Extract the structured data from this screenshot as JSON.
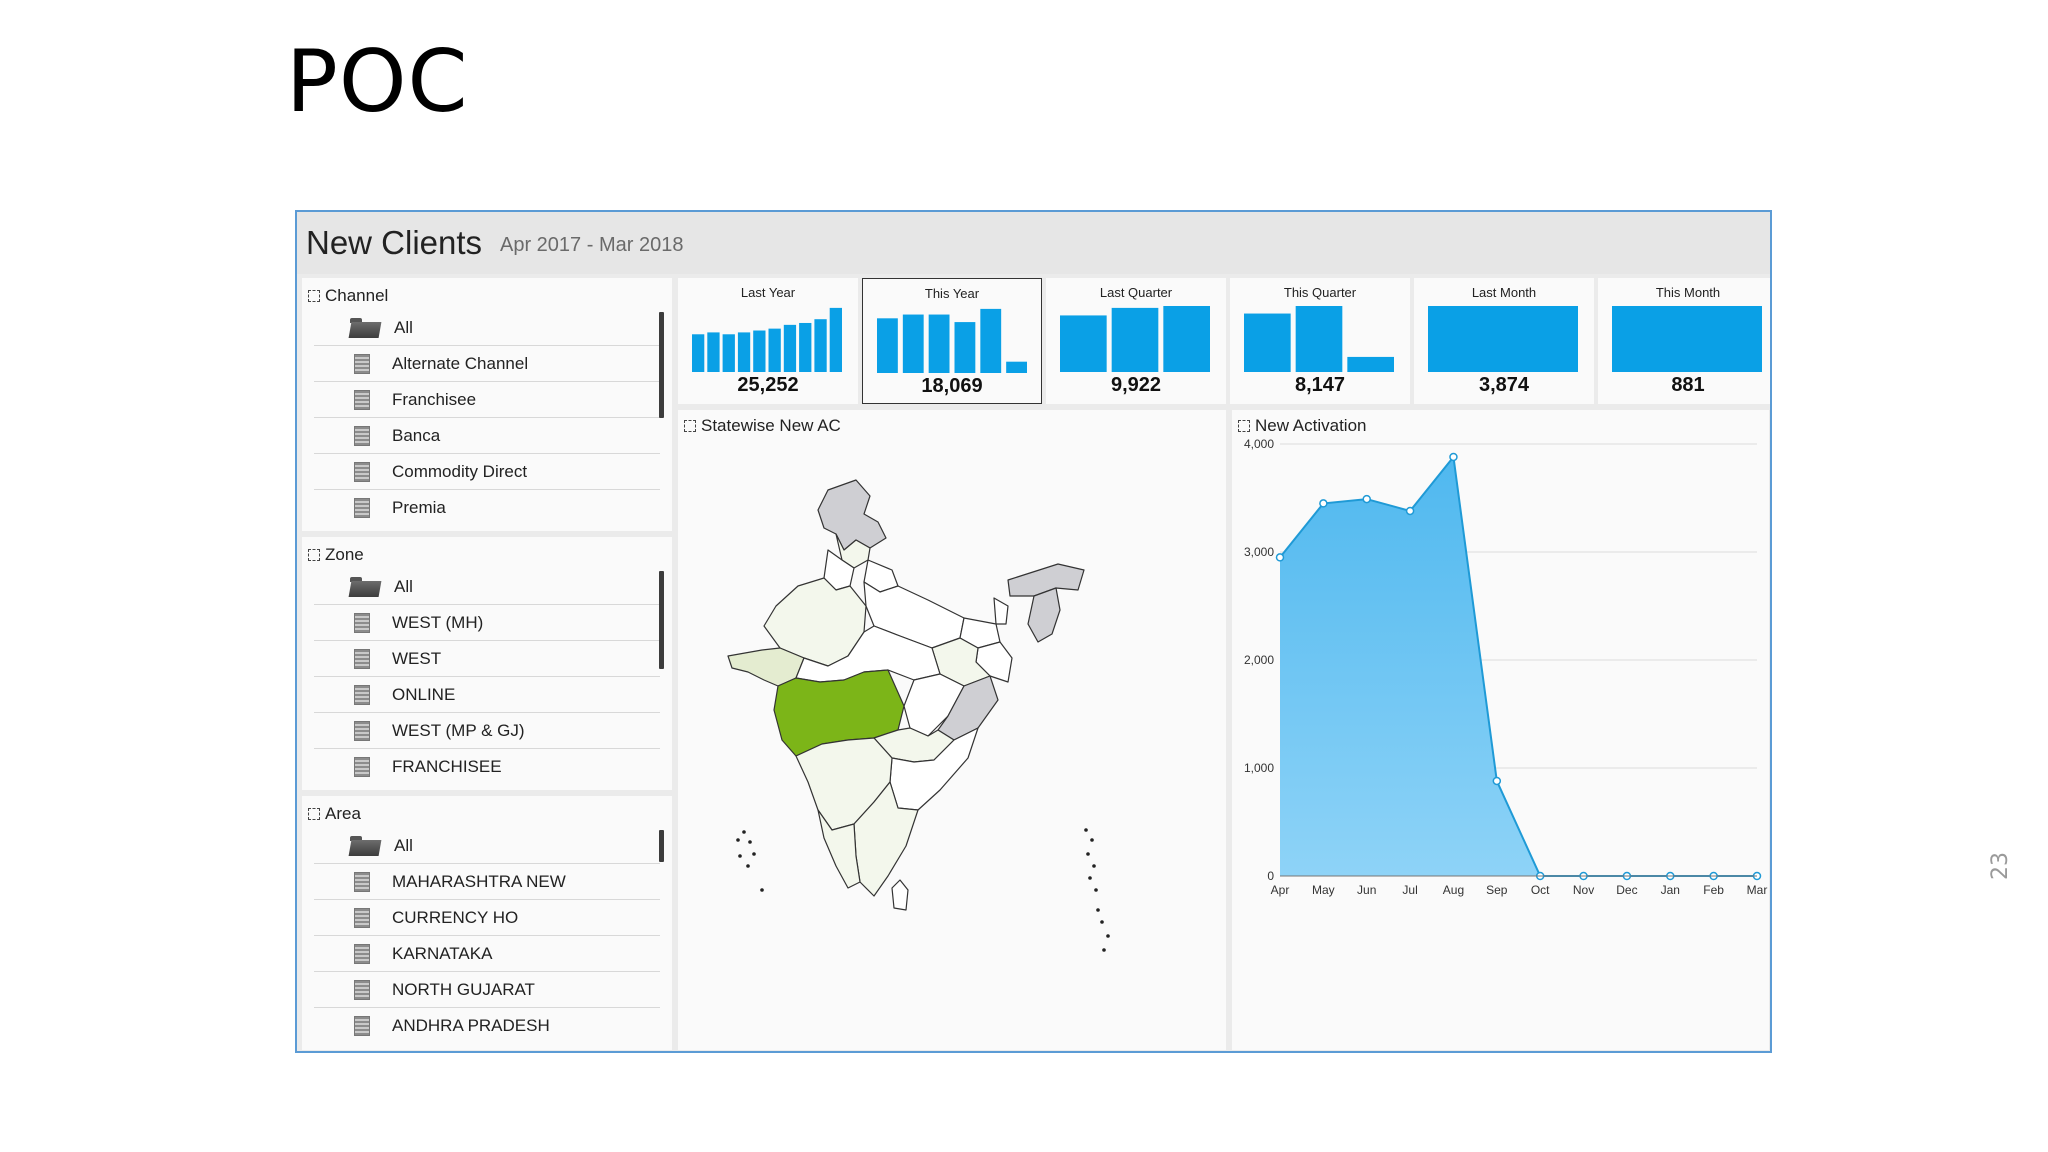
{
  "slide": {
    "title": "POC",
    "number": "23"
  },
  "dashboard": {
    "title": "New Clients",
    "date_range": "Apr 2017 - Mar 2018"
  },
  "filters": {
    "channel": {
      "label": "Channel",
      "items": [
        "All",
        "Alternate Channel",
        "Franchisee",
        "Banca",
        "Commodity Direct",
        "Premia"
      ]
    },
    "zone": {
      "label": "Zone",
      "items": [
        "All",
        "WEST (MH)",
        "WEST",
        "ONLINE",
        "WEST (MP & GJ)",
        "FRANCHISEE"
      ]
    },
    "area": {
      "label": "Area",
      "items": [
        "All",
        "MAHARASHTRA NEW",
        "CURRENCY HO",
        "KARNATAKA",
        "NORTH GUJARAT",
        "ANDHRA PRADESH"
      ]
    }
  },
  "kpis": [
    {
      "title": "Last Year",
      "value": "25,252",
      "bars": [
        20,
        21,
        20,
        21,
        22,
        23,
        25,
        26,
        28,
        34
      ],
      "selected": false
    },
    {
      "title": "This Year",
      "value": "18,069",
      "bars": [
        29,
        31,
        31,
        27,
        34,
        6
      ],
      "selected": true
    },
    {
      "title": "Last Quarter",
      "value": "9,922",
      "bars": [
        30,
        34,
        35
      ],
      "selected": false
    },
    {
      "title": "This Quarter",
      "value": "8,147",
      "bars": [
        31,
        35,
        8
      ],
      "selected": false
    },
    {
      "title": "Last Month",
      "value": "3,874",
      "bars": [
        35
      ],
      "selected": false
    },
    {
      "title": "This Month",
      "value": "881",
      "bars": [
        35
      ],
      "selected": false
    }
  ],
  "map": {
    "title": "Statewise New AC",
    "colors": {
      "highlight": "#7cb518",
      "light": "#e4ecd0",
      "pale": "#f3f7ec",
      "grey": "#cfcfd3",
      "white": "#ffffff"
    }
  },
  "chart_data": {
    "type": "area",
    "title": "New Activation",
    "categories": [
      "Apr",
      "May",
      "Jun",
      "Jul",
      "Aug",
      "Sep",
      "Oct",
      "Nov",
      "Dec",
      "Jan",
      "Feb",
      "Mar"
    ],
    "values": [
      2950,
      3450,
      3490,
      3380,
      3880,
      880,
      0,
      0,
      0,
      0,
      0,
      0
    ],
    "yticks": [
      "0",
      "1,000",
      "2,000",
      "3,000",
      "4,000"
    ],
    "ylim": [
      0,
      4000
    ],
    "grid": true,
    "color": "#4fb8ef"
  }
}
